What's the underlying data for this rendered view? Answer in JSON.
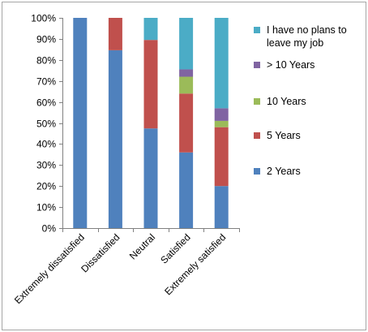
{
  "chart_data": {
    "type": "bar",
    "stacked": true,
    "percent": true,
    "categories": [
      "Extremely dissatisfied",
      "Dissatisfied",
      "Neutral",
      "Satisfied",
      "Extremely satisfied"
    ],
    "series": [
      {
        "name": "2 Years",
        "color": "#4F81BD",
        "values": [
          100,
          84.6,
          47.4,
          36,
          20
        ]
      },
      {
        "name": "5 Years",
        "color": "#C0504D",
        "values": [
          0,
          15.4,
          42.1,
          28,
          28
        ]
      },
      {
        "name": "10 Years",
        "color": "#9BBB59",
        "values": [
          0,
          0,
          0,
          8,
          3
        ]
      },
      {
        "name": "> 10 Years",
        "color": "#8064A2",
        "values": [
          0,
          0,
          0,
          3.5,
          6
        ]
      },
      {
        "name": "I have no plans to leave my job",
        "color": "#4BACC6",
        "values": [
          0,
          0,
          10.5,
          24.5,
          43
        ]
      }
    ],
    "legend_lines": [
      [
        "I have no plans to",
        "leave my job"
      ],
      [
        "> 10 Years"
      ],
      [
        "10 Years"
      ],
      [
        "5 Years"
      ],
      [
        "2 Years"
      ]
    ],
    "ylim": [
      0,
      100
    ],
    "yticks": [
      "0%",
      "10%",
      "20%",
      "30%",
      "40%",
      "50%",
      "60%",
      "70%",
      "80%",
      "90%",
      "100%"
    ],
    "grid": false,
    "legend_position": "right"
  }
}
